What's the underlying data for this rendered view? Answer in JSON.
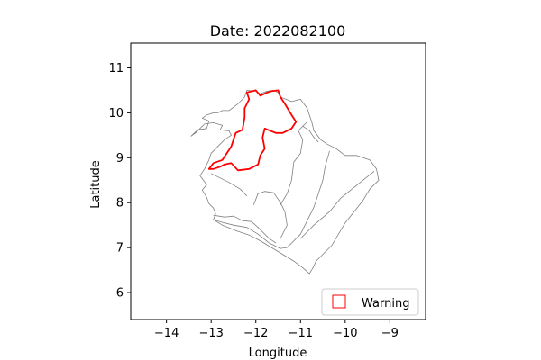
{
  "title": "Date: 2022082100",
  "x_axis": {
    "label": "Longitude",
    "range": [
      -14.8,
      -8.2
    ],
    "ticks": [
      -14,
      -13,
      -12,
      -11,
      -10,
      -9
    ],
    "tick_labels": [
      "−14",
      "−13",
      "−12",
      "−11",
      "−10",
      "−9"
    ]
  },
  "y_axis": {
    "label": "Latitude",
    "range": [
      5.4,
      11.55
    ],
    "ticks": [
      6,
      7,
      8,
      9,
      10,
      11
    ],
    "tick_labels": [
      "6",
      "7",
      "8",
      "9",
      "10",
      "11"
    ]
  },
  "legend": {
    "position": "lower-right",
    "entries": [
      {
        "label": "Warning",
        "edge_color": "#ff0000",
        "fill": "none"
      }
    ]
  },
  "colors": {
    "boundary": "#808080",
    "warning": "#ff0000"
  },
  "map_layers": {
    "region_outline": [
      [
        -13.05,
        8.95
      ],
      [
        -13.0,
        9.1
      ],
      [
        -12.85,
        9.25
      ],
      [
        -12.7,
        9.4
      ],
      [
        -12.55,
        9.5
      ],
      [
        -12.6,
        9.6
      ],
      [
        -12.8,
        9.62
      ],
      [
        -12.75,
        9.72
      ],
      [
        -12.95,
        9.78
      ],
      [
        -13.15,
        9.75
      ],
      [
        -13.25,
        9.65
      ],
      [
        -13.35,
        9.55
      ],
      [
        -13.45,
        9.48
      ],
      [
        -13.3,
        9.62
      ],
      [
        -13.1,
        9.65
      ],
      [
        -13.05,
        9.82
      ],
      [
        -13.2,
        9.88
      ],
      [
        -13.1,
        9.95
      ],
      [
        -12.95,
        10.0
      ],
      [
        -12.85,
        10.0
      ],
      [
        -12.75,
        10.05
      ],
      [
        -12.6,
        10.05
      ],
      [
        -12.4,
        10.2
      ],
      [
        -12.25,
        10.35
      ],
      [
        -12.2,
        10.5
      ],
      [
        -12.0,
        10.48
      ],
      [
        -11.9,
        10.42
      ],
      [
        -11.75,
        10.48
      ],
      [
        -11.6,
        10.5
      ],
      [
        -11.5,
        10.45
      ],
      [
        -11.45,
        10.35
      ],
      [
        -11.2,
        10.25
      ],
      [
        -11.0,
        10.3
      ],
      [
        -10.85,
        10.1
      ],
      [
        -10.75,
        9.8
      ],
      [
        -10.7,
        9.6
      ],
      [
        -10.55,
        9.4
      ],
      [
        -10.4,
        9.3
      ],
      [
        -10.2,
        9.2
      ],
      [
        -10.0,
        9.05
      ],
      [
        -9.75,
        9.05
      ],
      [
        -9.45,
        8.95
      ],
      [
        -9.3,
        8.75
      ],
      [
        -9.25,
        8.5
      ],
      [
        -9.45,
        8.3
      ],
      [
        -9.6,
        8.05
      ],
      [
        -9.8,
        7.8
      ],
      [
        -10.0,
        7.55
      ],
      [
        -10.15,
        7.3
      ],
      [
        -10.3,
        7.05
      ],
      [
        -10.5,
        6.85
      ],
      [
        -10.65,
        6.7
      ],
      [
        -10.72,
        6.55
      ],
      [
        -10.8,
        6.42
      ],
      [
        -10.95,
        6.55
      ],
      [
        -11.15,
        6.7
      ],
      [
        -11.4,
        6.85
      ],
      [
        -11.65,
        7.0
      ],
      [
        -11.9,
        7.15
      ],
      [
        -12.15,
        7.28
      ],
      [
        -12.45,
        7.38
      ],
      [
        -12.75,
        7.5
      ],
      [
        -12.95,
        7.62
      ],
      [
        -12.9,
        7.75
      ],
      [
        -12.95,
        7.88
      ],
      [
        -13.05,
        7.98
      ],
      [
        -13.1,
        8.12
      ],
      [
        -13.2,
        8.28
      ],
      [
        -13.1,
        8.4
      ],
      [
        -13.25,
        8.6
      ],
      [
        -13.15,
        8.75
      ],
      [
        -13.05,
        8.95
      ]
    ],
    "district_lines": [
      [
        [
          -12.95,
          7.62
        ],
        [
          -12.7,
          7.55
        ],
        [
          -12.5,
          7.5
        ],
        [
          -12.2,
          7.45
        ],
        [
          -11.95,
          7.3
        ],
        [
          -11.7,
          7.1
        ],
        [
          -11.45,
          6.98
        ],
        [
          -11.3,
          7.0
        ]
      ],
      [
        [
          -12.95,
          7.72
        ],
        [
          -12.7,
          7.68
        ],
        [
          -12.5,
          7.7
        ],
        [
          -12.3,
          7.6
        ],
        [
          -12.1,
          7.58
        ],
        [
          -11.95,
          7.45
        ],
        [
          -11.7,
          7.2
        ],
        [
          -11.55,
          7.1
        ]
      ],
      [
        [
          -12.05,
          7.95
        ],
        [
          -11.95,
          8.2
        ],
        [
          -11.8,
          8.25
        ],
        [
          -11.6,
          8.22
        ],
        [
          -11.45,
          8.0
        ],
        [
          -11.35,
          7.8
        ],
        [
          -11.3,
          7.5
        ],
        [
          -11.45,
          7.2
        ]
      ],
      [
        [
          -11.45,
          7.95
        ],
        [
          -11.3,
          8.2
        ],
        [
          -11.2,
          8.5
        ],
        [
          -11.15,
          8.9
        ],
        [
          -11.0,
          9.1
        ],
        [
          -10.95,
          9.4
        ],
        [
          -11.05,
          9.6
        ],
        [
          -10.85,
          9.8
        ]
      ],
      [
        [
          -11.3,
          7.0
        ],
        [
          -11.0,
          7.3
        ],
        [
          -10.85,
          7.6
        ],
        [
          -10.7,
          7.9
        ],
        [
          -10.6,
          8.2
        ],
        [
          -10.5,
          8.5
        ],
        [
          -10.45,
          8.8
        ],
        [
          -10.35,
          9.15
        ]
      ],
      [
        [
          -11.0,
          7.2
        ],
        [
          -10.7,
          7.5
        ],
        [
          -10.35,
          7.8
        ],
        [
          -10.1,
          8.1
        ],
        [
          -9.85,
          8.3
        ],
        [
          -9.6,
          8.5
        ],
        [
          -9.35,
          8.7
        ]
      ],
      [
        [
          -12.2,
          8.15
        ],
        [
          -12.35,
          8.3
        ],
        [
          -12.6,
          8.45
        ],
        [
          -12.8,
          8.55
        ],
        [
          -13.0,
          8.65
        ]
      ],
      [
        [
          -10.95,
          9.7
        ],
        [
          -10.8,
          9.6
        ],
        [
          -10.7,
          9.45
        ],
        [
          -10.6,
          9.35
        ]
      ]
    ],
    "warning_region": [
      [
        -13.05,
        8.75
      ],
      [
        -12.95,
        8.88
      ],
      [
        -12.75,
        8.95
      ],
      [
        -12.55,
        9.25
      ],
      [
        -12.45,
        9.55
      ],
      [
        -12.3,
        9.62
      ],
      [
        -12.25,
        9.9
      ],
      [
        -12.25,
        10.1
      ],
      [
        -12.15,
        10.3
      ],
      [
        -12.2,
        10.45
      ],
      [
        -12.0,
        10.5
      ],
      [
        -11.9,
        10.38
      ],
      [
        -11.75,
        10.45
      ],
      [
        -11.65,
        10.48
      ],
      [
        -11.5,
        10.5
      ],
      [
        -11.45,
        10.35
      ],
      [
        -11.35,
        10.2
      ],
      [
        -11.2,
        9.95
      ],
      [
        -11.1,
        9.8
      ],
      [
        -11.2,
        9.65
      ],
      [
        -11.4,
        9.55
      ],
      [
        -11.55,
        9.55
      ],
      [
        -11.8,
        9.65
      ],
      [
        -11.85,
        9.45
      ],
      [
        -11.8,
        9.2
      ],
      [
        -11.9,
        9.05
      ],
      [
        -11.95,
        8.85
      ],
      [
        -12.15,
        8.75
      ],
      [
        -12.4,
        8.72
      ],
      [
        -12.55,
        8.88
      ],
      [
        -12.7,
        8.85
      ],
      [
        -12.8,
        8.8
      ],
      [
        -12.95,
        8.75
      ],
      [
        -13.05,
        8.75
      ]
    ]
  }
}
